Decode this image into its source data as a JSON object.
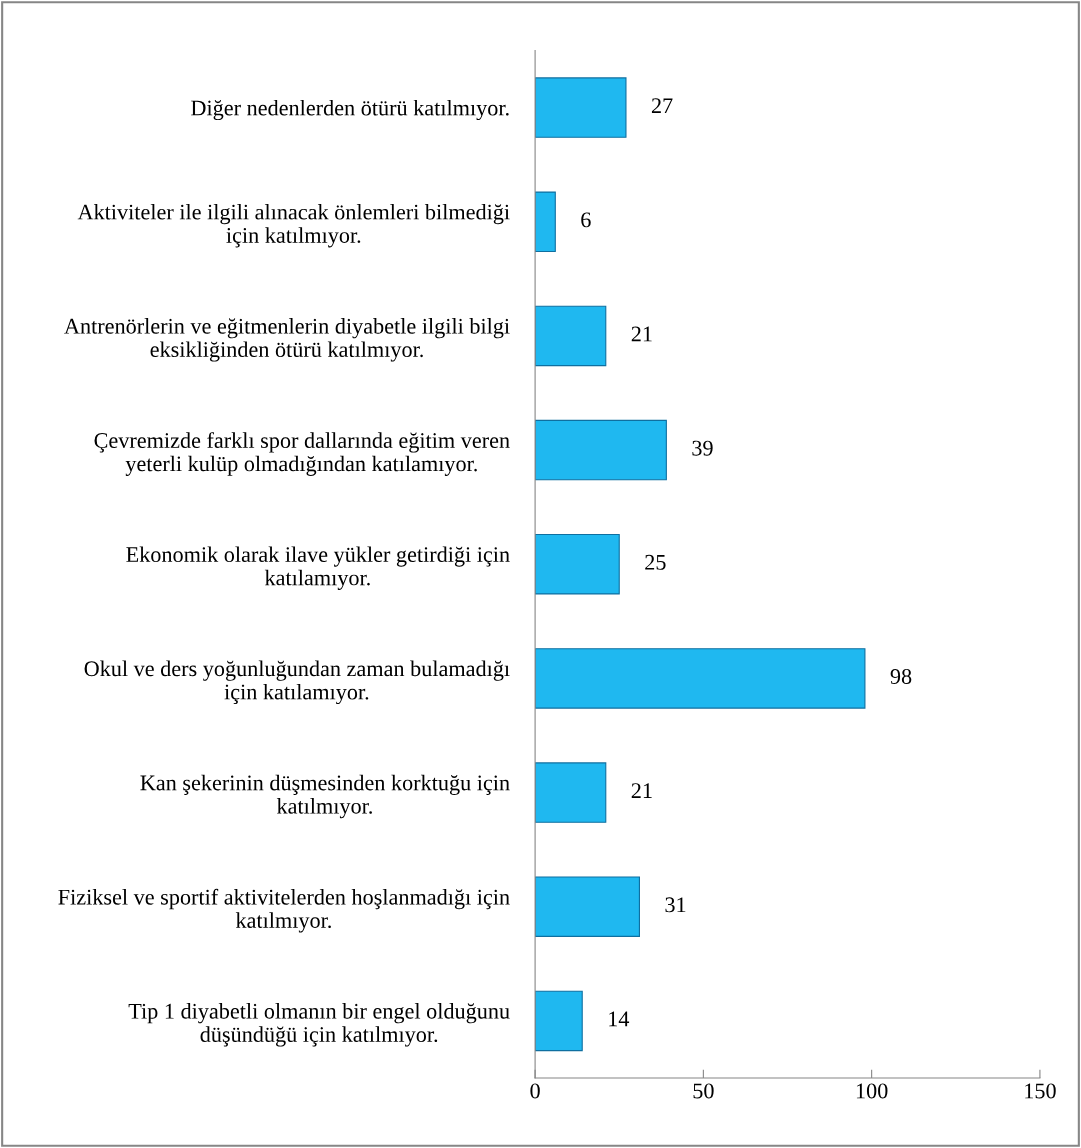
{
  "chart_data": {
    "type": "bar",
    "orientation": "horizontal",
    "categories": [
      "Diğer nedenlerden ötürü katılmıyor.",
      "Aktiviteler ile ilgili alınacak önlemleri bilmediği\niçin katılmıyor.",
      "Antrenörlerin ve eğitmenlerin diyabetle ilgili bilgi\neksikliğinden ötürü katılmıyor.",
      "Çevremizde farklı spor dallarında eğitim veren\nyeterli kulüp olmadığından katılamıyor.",
      "Ekonomik olarak ilave yükler getirdiği için\nkatılamıyor.",
      "Okul ve ders yoğunluğundan zaman bulamadığı\niçin katılamıyor.",
      "Kan şekerinin düşmesinden korktuğu için\nkatılmıyor.",
      "Fiziksel ve sportif aktivitelerden hoşlanmadığı için\nkatılmıyor.",
      "Tip 1 diyabetli olmanın bir engel olduğunu\ndüşündüğü için katılmıyor."
    ],
    "values": [
      27,
      6,
      21,
      39,
      25,
      98,
      21,
      31,
      14
    ],
    "color": "#1fb8f0",
    "data_labels": true,
    "xlim": [
      0,
      150
    ],
    "xticks": [
      0,
      50,
      100,
      150
    ],
    "grid": false
  }
}
